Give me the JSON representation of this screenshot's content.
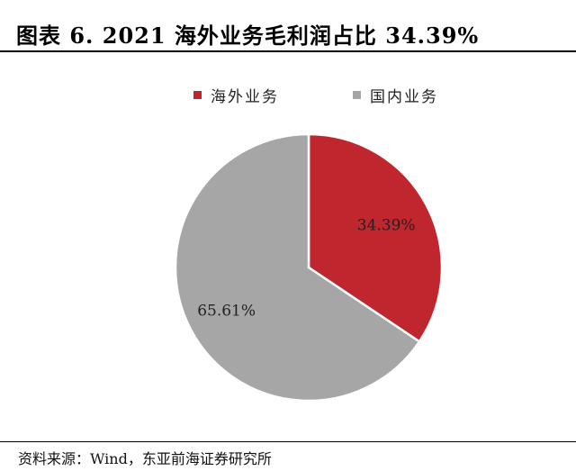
{
  "figure": {
    "title": "图表 6.   2021 海外业务毛利润占比 34.39%",
    "source": "资料来源：Wind，东亚前海证券研究所"
  },
  "chart_data": {
    "type": "pie",
    "categories": [
      "海外业务",
      "国内业务"
    ],
    "values": [
      34.39,
      65.61
    ],
    "labels": [
      "34.39%",
      "65.61%"
    ],
    "colors": [
      "#c0262d",
      "#a6a6a6"
    ],
    "start_angle_deg": 0,
    "direction": "clockwise",
    "legend_position": "top",
    "title": "",
    "unit": "%"
  }
}
